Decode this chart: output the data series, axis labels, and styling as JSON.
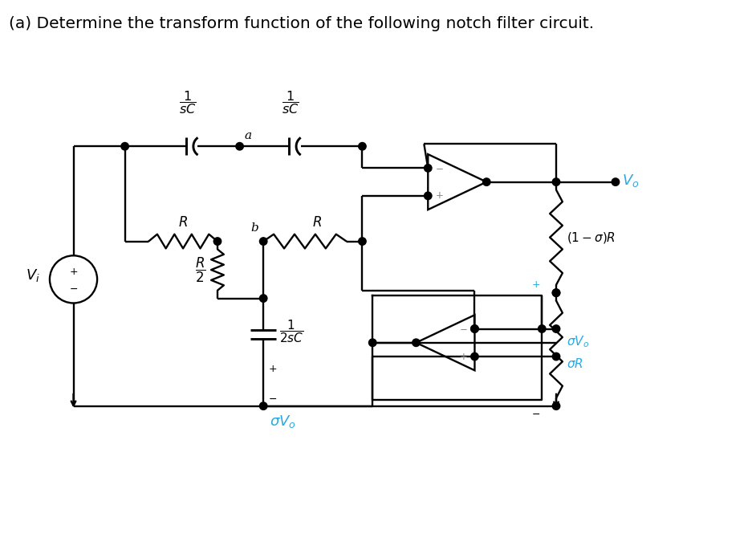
{
  "title": "(a) Determine the transform function of the following notch filter circuit.",
  "line_color": "#000000",
  "cyan_color": "#29ABE2",
  "bg_color": "#ffffff",
  "title_fontsize": 14.5,
  "lw": 1.7,
  "dot_r": 0.048
}
